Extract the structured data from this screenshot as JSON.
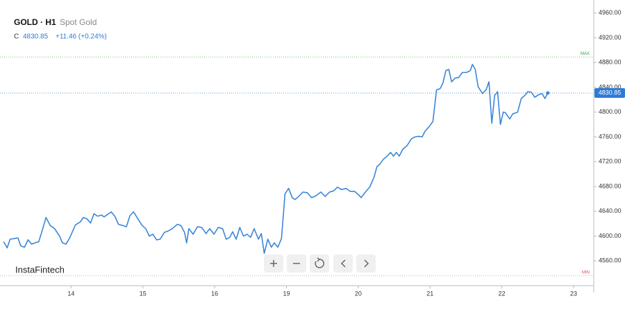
{
  "chart_data": {
    "type": "line",
    "title": "GOLD · H1",
    "subtitle": "Spot Gold",
    "close_label": "C",
    "last_price": 4830.85,
    "change_label": "+11.46 (+0.24%)",
    "brand": "InstaFintech",
    "max_label": "MAX",
    "max_level": 4889,
    "min_label": "MIN",
    "min_level": 4536,
    "color": "#3a86d8",
    "grid": false,
    "xlim": [
      0.01,
      8.28
    ],
    "xticks": [
      {
        "value": 1,
        "label": "14"
      },
      {
        "value": 2,
        "label": "15"
      },
      {
        "value": 3,
        "label": "16"
      },
      {
        "value": 4,
        "label": "19"
      },
      {
        "value": 5,
        "label": "20"
      },
      {
        "value": 6,
        "label": "21"
      },
      {
        "value": 7,
        "label": "22"
      },
      {
        "value": 8,
        "label": "23"
      }
    ],
    "ylim": [
      4520,
      4972
    ],
    "yticks": [
      {
        "value": 4560,
        "label": "4560.00"
      },
      {
        "value": 4600,
        "label": "4600.00"
      },
      {
        "value": 4640,
        "label": "4640.00"
      },
      {
        "value": 4680,
        "label": "4680.00"
      },
      {
        "value": 4720,
        "label": "4720.00"
      },
      {
        "value": 4760,
        "label": "4760.00"
      },
      {
        "value": 4800,
        "label": "4800.00"
      },
      {
        "value": 4840,
        "label": "4840.00"
      },
      {
        "value": 4880,
        "label": "4880.00"
      },
      {
        "value": 4920,
        "label": "4920.00"
      },
      {
        "value": 4960,
        "label": "4960.00"
      }
    ],
    "x": [
      0.06,
      0.11,
      0.15,
      0.21,
      0.26,
      0.3,
      0.35,
      0.4,
      0.45,
      0.5,
      0.55,
      0.59,
      0.65,
      0.71,
      0.77,
      0.84,
      0.88,
      0.93,
      0.98,
      1.06,
      1.13,
      1.17,
      1.22,
      1.27,
      1.32,
      1.37,
      1.42,
      1.46,
      1.51,
      1.56,
      1.61,
      1.66,
      1.72,
      1.77,
      1.82,
      1.87,
      1.93,
      1.99,
      2.04,
      2.09,
      2.14,
      2.19,
      2.24,
      2.3,
      2.35,
      2.41,
      2.48,
      2.53,
      2.58,
      2.61,
      2.64,
      2.7,
      2.76,
      2.82,
      2.88,
      2.93,
      2.99,
      3.05,
      3.11,
      3.16,
      3.21,
      3.25,
      3.3,
      3.35,
      3.4,
      3.45,
      3.5,
      3.55,
      3.61,
      3.65,
      3.69,
      3.74,
      3.79,
      3.83,
      3.88,
      3.93,
      3.98,
      4.03,
      4.08,
      4.12,
      4.17,
      4.23,
      4.29,
      4.35,
      4.41,
      4.48,
      4.54,
      4.6,
      4.66,
      4.71,
      4.77,
      4.83,
      4.89,
      4.95,
      5.0,
      5.04,
      5.1,
      5.16,
      5.22,
      5.26,
      5.3,
      5.35,
      5.41,
      5.45,
      5.49,
      5.53,
      5.57,
      5.62,
      5.68,
      5.74,
      5.79,
      5.84,
      5.89,
      5.93,
      5.99,
      6.04,
      6.09,
      6.14,
      6.18,
      6.22,
      6.26,
      6.3,
      6.35,
      6.4,
      6.45,
      6.51,
      6.56,
      6.59,
      6.63,
      6.67,
      6.73,
      6.78,
      6.82,
      6.86,
      6.9,
      6.94,
      6.98,
      7.02,
      7.05,
      7.11,
      7.15,
      7.22,
      7.27,
      7.33,
      7.36,
      7.41,
      7.46,
      7.51,
      7.56,
      7.6,
      7.64
    ],
    "values": [
      4591,
      4581,
      4595,
      4596,
      4597,
      4584,
      4582,
      4594,
      4587,
      4589,
      4591,
      4606,
      4630,
      4617,
      4612,
      4600,
      4589,
      4587,
      4597,
      4618,
      4623,
      4630,
      4628,
      4621,
      4636,
      4632,
      4634,
      4631,
      4635,
      4639,
      4632,
      4619,
      4617,
      4615,
      4633,
      4639,
      4628,
      4617,
      4612,
      4600,
      4603,
      4594,
      4595,
      4606,
      4608,
      4612,
      4619,
      4617,
      4606,
      4589,
      4612,
      4603,
      4615,
      4614,
      4604,
      4612,
      4603,
      4614,
      4612,
      4595,
      4598,
      4607,
      4595,
      4614,
      4600,
      4603,
      4598,
      4612,
      4595,
      4604,
      4572,
      4595,
      4582,
      4589,
      4582,
      4596,
      4668,
      4677,
      4662,
      4659,
      4664,
      4671,
      4670,
      4662,
      4665,
      4671,
      4664,
      4671,
      4673,
      4679,
      4675,
      4677,
      4672,
      4672,
      4667,
      4662,
      4671,
      4679,
      4695,
      4712,
      4716,
      4724,
      4730,
      4735,
      4729,
      4735,
      4729,
      4740,
      4746,
      4757,
      4760,
      4761,
      4760,
      4769,
      4777,
      4785,
      4836,
      4838,
      4847,
      4867,
      4869,
      4849,
      4855,
      4856,
      4864,
      4864,
      4867,
      4877,
      4869,
      4841,
      4830,
      4836,
      4849,
      4782,
      4827,
      4833,
      4780,
      4800,
      4799,
      4789,
      4797,
      4800,
      4822,
      4828,
      4833,
      4832,
      4824,
      4828,
      4830,
      4822,
      4830.85
    ]
  }
}
